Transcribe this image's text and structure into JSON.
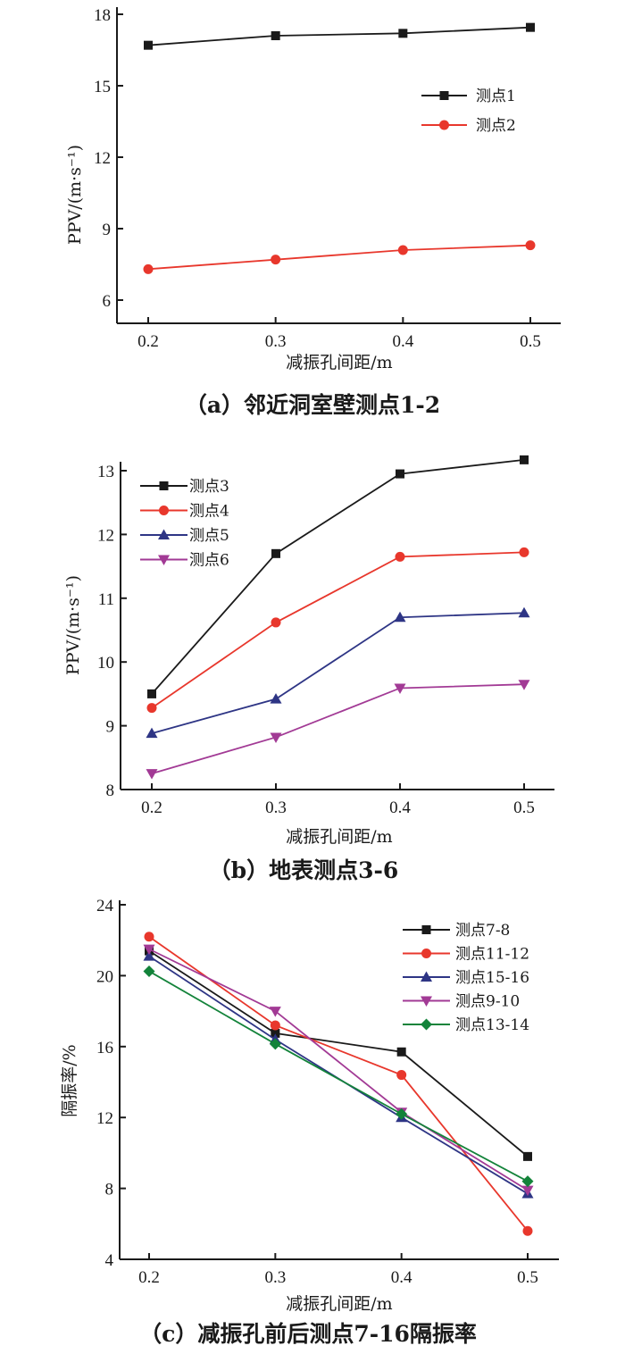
{
  "chart_data": [
    {
      "id": "a",
      "type": "line",
      "caption": "（a）邻近洞室壁测点1-2",
      "xlabel": "减振孔间距/m",
      "ylabel": "PPV/(m·s⁻¹)",
      "x": [
        0.2,
        0.3,
        0.4,
        0.5
      ],
      "x_tick_labels": [
        "0.2",
        "0.3",
        "0.4",
        "0.5"
      ],
      "xlim": [
        0.175,
        0.535
      ],
      "ylim": [
        5,
        18
      ],
      "y_ticks": [
        6,
        9,
        12,
        15,
        18
      ],
      "y_tick_labels": [
        "6",
        "9",
        "12",
        "15",
        "18"
      ],
      "grid": false,
      "legend_position": "top-right",
      "series": [
        {
          "name": "测点1",
          "color": "#1a1a1a",
          "marker": "square",
          "values": [
            16.7,
            17.1,
            17.2,
            17.45
          ]
        },
        {
          "name": "测点2",
          "color": "#e8372c",
          "marker": "circle",
          "values": [
            7.3,
            7.7,
            8.1,
            8.3
          ]
        }
      ]
    },
    {
      "id": "b",
      "type": "line",
      "caption": "（b）地表测点3-6",
      "xlabel": "减振孔间距/m",
      "ylabel": "PPV/(m·s⁻¹)",
      "x": [
        0.2,
        0.3,
        0.4,
        0.5
      ],
      "x_tick_labels": [
        "0.2",
        "0.3",
        "0.4",
        "0.5"
      ],
      "xlim": [
        0.175,
        0.525
      ],
      "ylim": [
        8,
        13.15
      ],
      "y_ticks": [
        8,
        9,
        10,
        11,
        12,
        13
      ],
      "y_tick_labels": [
        "8",
        "9",
        "10",
        "11",
        "12",
        "13"
      ],
      "grid": false,
      "legend_position": "top-left",
      "series": [
        {
          "name": "测点3",
          "color": "#1a1a1a",
          "marker": "square",
          "values": [
            9.5,
            11.7,
            12.95,
            13.17
          ]
        },
        {
          "name": "测点4",
          "color": "#e8372c",
          "marker": "circle",
          "values": [
            9.28,
            10.62,
            11.65,
            11.72
          ]
        },
        {
          "name": "测点5",
          "color": "#2e3585",
          "marker": "triangle-up",
          "values": [
            8.88,
            9.42,
            10.7,
            10.77
          ]
        },
        {
          "name": "测点6",
          "color": "#a23a95",
          "marker": "triangle-down",
          "values": [
            8.25,
            8.82,
            9.59,
            9.65
          ]
        }
      ]
    },
    {
      "id": "c",
      "type": "line",
      "caption": "（c）减振孔前后测点7-16隔振率",
      "xlabel": "减振孔间距/m",
      "ylabel": "隔振率/%",
      "x": [
        0.2,
        0.3,
        0.4,
        0.5
      ],
      "x_tick_labels": [
        "0.2",
        "0.3",
        "0.4",
        "0.5"
      ],
      "xlim": [
        0.175,
        0.525
      ],
      "ylim": [
        4,
        24
      ],
      "y_ticks": [
        4,
        8,
        12,
        16,
        20,
        24
      ],
      "y_tick_labels": [
        "4",
        "8",
        "12",
        "16",
        "20",
        "24"
      ],
      "grid": false,
      "legend_position": "top-right",
      "series": [
        {
          "name": "测点7-8",
          "color": "#1a1a1a",
          "marker": "square",
          "values": [
            21.4,
            16.75,
            15.7,
            9.8
          ]
        },
        {
          "name": "测点11-12",
          "color": "#e8372c",
          "marker": "circle",
          "values": [
            22.2,
            17.2,
            14.4,
            5.6
          ]
        },
        {
          "name": "测点15-16",
          "color": "#2e3585",
          "marker": "triangle-up",
          "values": [
            21.1,
            16.4,
            12.0,
            7.7
          ]
        },
        {
          "name": "测点9-10",
          "color": "#a23a95",
          "marker": "triangle-down",
          "values": [
            21.5,
            18.0,
            12.3,
            7.9
          ]
        },
        {
          "name": "测点13-14",
          "color": "#13833a",
          "marker": "diamond",
          "values": [
            20.25,
            16.15,
            12.2,
            8.4
          ]
        }
      ]
    }
  ]
}
